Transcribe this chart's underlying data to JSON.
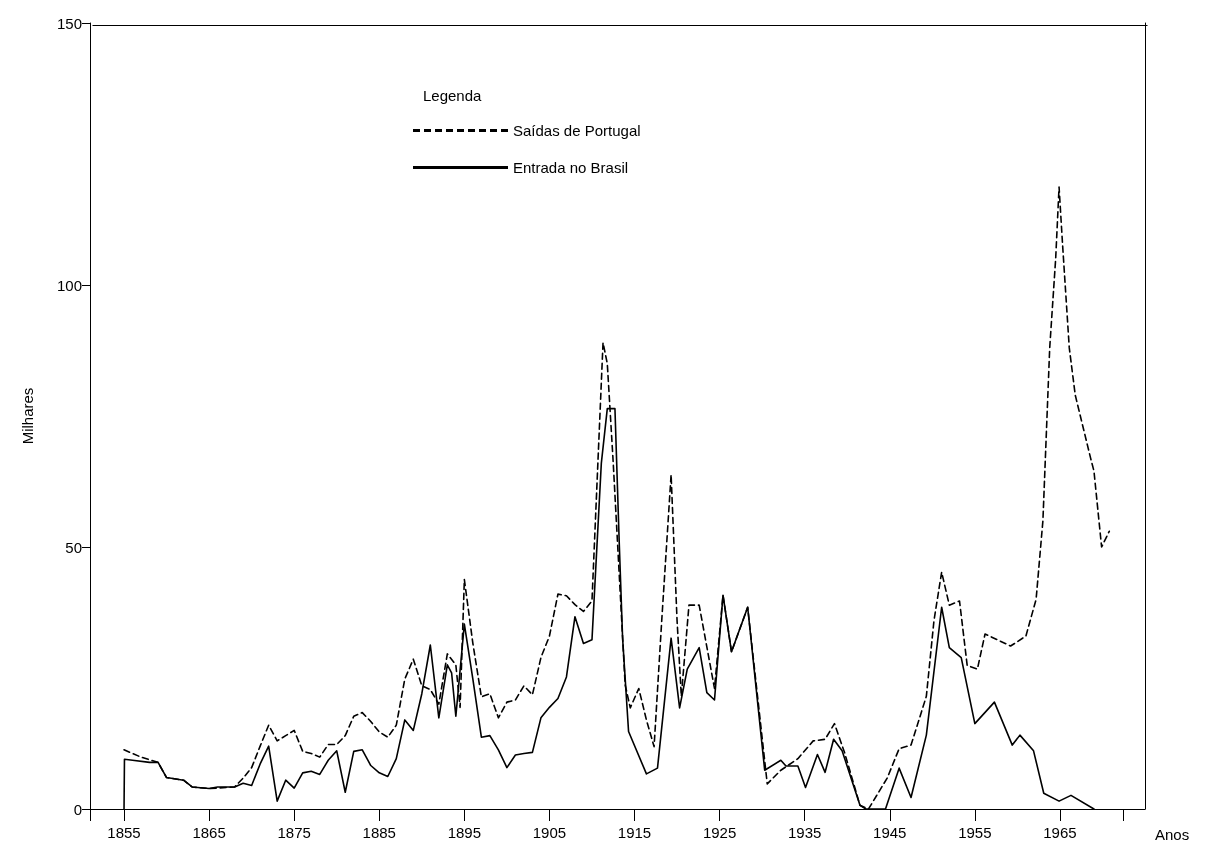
{
  "chart_data": {
    "type": "line",
    "xlabel": "Anos",
    "ylabel": "Milhares",
    "legend_title": "Legenda",
    "legend": "top",
    "grid": false,
    "marker": "none",
    "xlim": [
      1851,
      1975
    ],
    "xticks": [
      {
        "value": 1851,
        "label": null
      },
      1855,
      1865,
      1875,
      1885,
      1895,
      1905,
      1915,
      1925,
      1935,
      1945,
      1955,
      1965,
      {
        "value": 1972.5,
        "label": null
      }
    ],
    "ylim": [
      0,
      150
    ],
    "yticks": [
      0,
      50,
      100,
      150
    ],
    "series": [
      {
        "name": "Saídas de Portugal",
        "color": "#000000",
        "line_style": "dashed",
        "x": [
          1855,
          1857,
          1859,
          1860,
          1862,
          1863,
          1865,
          1868,
          1869,
          1870,
          1871,
          1872,
          1873,
          1874,
          1875,
          1876,
          1877,
          1878,
          1879,
          1880,
          1881,
          1882,
          1883,
          1884,
          1885,
          1886,
          1887,
          1888,
          1889,
          1890,
          1891,
          1892,
          1893,
          1894,
          1894.5,
          1895,
          1896,
          1897,
          1898,
          1899,
          1900,
          1901,
          1902,
          1903,
          1904,
          1905,
          1906,
          1907,
          1908,
          1909,
          1910,
          1911.3,
          1911.8,
          1912.5,
          1913.9,
          1914.5,
          1915.5,
          1916.4,
          1917.3,
          1918.2,
          1919.3,
          1920,
          1920.5,
          1921.4,
          1922.6,
          1924.4,
          1925.4,
          1926.4,
          1928.3,
          1930.6,
          1932.2,
          1934.2,
          1936,
          1937.4,
          1938.5,
          1939.7,
          1941.5,
          1942.5,
          1944.7,
          1946.1,
          1947.5,
          1949.3,
          1950.2,
          1951.1,
          1952,
          1953.2,
          1954.1,
          1955.3,
          1956.2,
          1959.2,
          1961,
          1962.2,
          1963,
          1963.8,
          1964.5,
          1964.9,
          1965.3,
          1966.1,
          1966.8,
          1967.4,
          1968.6,
          1969,
          1969.9,
          1970.8
        ],
        "values": [
          11.3,
          9.9,
          8.9,
          6,
          5.5,
          4.2,
          3.9,
          4.2,
          5.9,
          7.9,
          12,
          16,
          13,
          14,
          15,
          11,
          10.6,
          9.9,
          12.3,
          12.3,
          14,
          17.7,
          18.4,
          16.7,
          14.7,
          13.7,
          16,
          24.8,
          28.6,
          23.5,
          22.8,
          20,
          29.6,
          27.5,
          19.4,
          43.8,
          31.6,
          21.4,
          22,
          17.4,
          20.4,
          20.8,
          23.5,
          21.8,
          28.9,
          33,
          41,
          40.7,
          39,
          37.7,
          39.7,
          89,
          85,
          66,
          23.7,
          19.3,
          23,
          17,
          11.9,
          36,
          63.8,
          36,
          21.5,
          38.9,
          38.9,
          23,
          40.8,
          30,
          38.5,
          4.8,
          7.4,
          9.6,
          13,
          13.3,
          16.3,
          10.7,
          0.7,
          0,
          5.9,
          11.5,
          12.2,
          21.5,
          36,
          45.2,
          38.9,
          39.7,
          27.4,
          26.7,
          33.4,
          31.1,
          33,
          40,
          55,
          88,
          105,
          118.7,
          108,
          88,
          79,
          75,
          67,
          64.5,
          50,
          53
        ]
      },
      {
        "name": "Entrada no Brasil",
        "color": "#000000",
        "line_style": "solid",
        "x": [
          1855,
          1855.05,
          1856,
          1858,
          1859,
          1860,
          1862,
          1863,
          1865,
          1866,
          1868,
          1869,
          1870,
          1871,
          1872,
          1873,
          1874,
          1875,
          1876,
          1877,
          1878,
          1879,
          1880,
          1881,
          1882,
          1883,
          1884,
          1885,
          1886,
          1887,
          1888,
          1889,
          1890,
          1891,
          1892,
          1893,
          1893.5,
          1894,
          1895,
          1896,
          1897,
          1898,
          1899,
          1900,
          1901,
          1902,
          1903,
          1904,
          1905,
          1906,
          1907,
          1908,
          1909,
          1910,
          1911.1,
          1911.8,
          1912.7,
          1913.2,
          1913.6,
          1914.3,
          1916.4,
          1917.7,
          1919.3,
          1920.3,
          1921.2,
          1922.6,
          1923.5,
          1924.4,
          1925.4,
          1926.4,
          1928.3,
          1930.3,
          1932.2,
          1932.8,
          1934.2,
          1935.1,
          1936.5,
          1937.4,
          1938.4,
          1939.4,
          1941.5,
          1942.2,
          1944.5,
          1946.1,
          1947.5,
          1949.3,
          1951.1,
          1952,
          1953.4,
          1955,
          1957.3,
          1959.4,
          1960.3,
          1961.9,
          1963.1,
          1964.9,
          1966.3,
          1969
        ],
        "values": [
          0,
          9.5,
          9.3,
          8.9,
          8.9,
          6,
          5.5,
          4.2,
          3.9,
          4.2,
          4.2,
          4.9,
          4.5,
          8.6,
          12,
          1.5,
          5.5,
          4,
          6.9,
          7.2,
          6.6,
          9.3,
          11.1,
          3.2,
          11,
          11.3,
          8.3,
          6.9,
          6.2,
          9.6,
          17,
          15,
          22,
          31.3,
          17.4,
          27.5,
          26,
          17.7,
          35.3,
          24.8,
          13.7,
          14,
          11.3,
          7.9,
          10.3,
          10.6,
          10.8,
          17.4,
          19.4,
          21.1,
          25.2,
          36.7,
          31.6,
          32.3,
          66,
          76.4,
          76.4,
          51,
          32.6,
          14.8,
          6.7,
          7.8,
          32.6,
          19.3,
          26.7,
          30.8,
          22.2,
          20.8,
          40.8,
          30,
          38.5,
          7.4,
          9.3,
          8.2,
          8.2,
          4.1,
          10.4,
          7,
          13.3,
          11.1,
          0.7,
          0,
          0,
          7.8,
          2.2,
          14.1,
          38.5,
          30.8,
          28.9,
          16.3,
          20.4,
          12.2,
          14.1,
          11.1,
          3,
          1.5,
          2.6,
          0
        ]
      }
    ]
  }
}
